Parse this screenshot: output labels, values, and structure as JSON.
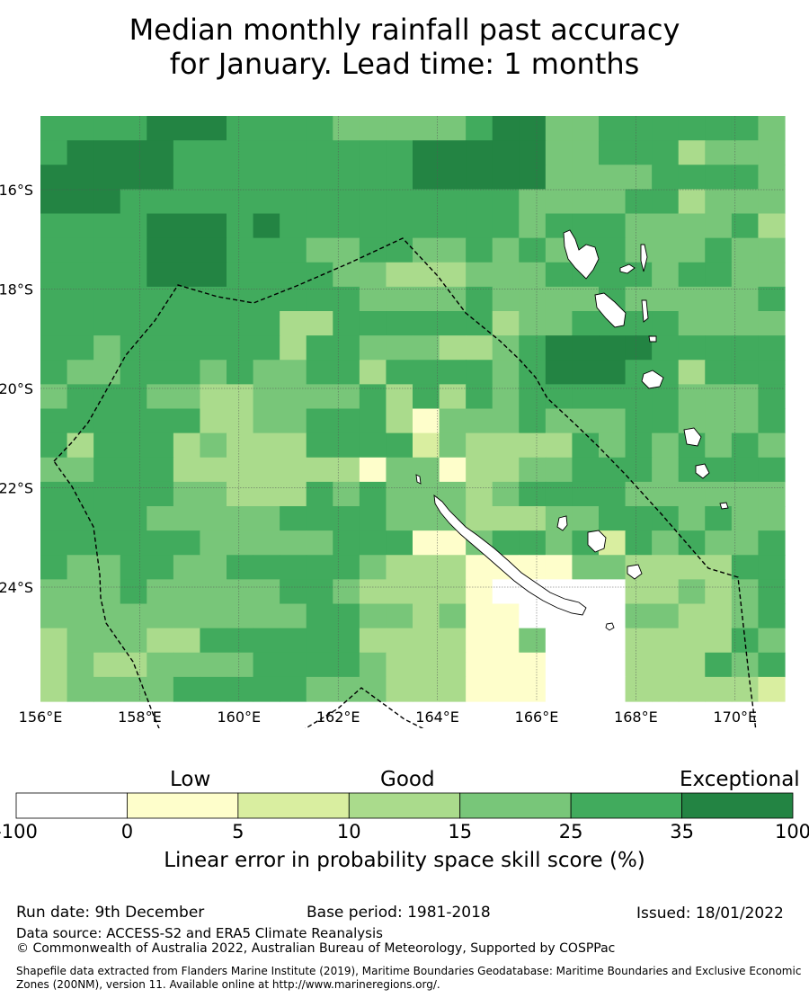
{
  "title_line1": "Median monthly rainfall past accuracy",
  "title_line2": "for January. Lead time: 1 months",
  "map": {
    "lon_labels": [
      "156°E",
      "158°E",
      "160°E",
      "162°E",
      "164°E",
      "166°E",
      "168°E",
      "170°E"
    ],
    "lat_labels": [
      "16°S",
      "18°S",
      "20°S",
      "22°S",
      "24°S"
    ],
    "grid": [
      "5555666555544444566445555554",
      "5666655555555566666445553444",
      "6666655555555566666444455554",
      "6665555555555555554444553444",
      "5555666565555555554555444453",
      "5555666555445544545455444544",
      "5555666555544333444555545544",
      "5555555555554444544445444445",
      "5555555553355555534455554444",
      "5545555553554443345666655555",
      "5445554544553555545666553555",
      "4555443344445353545555554445",
      "5555553344555314445444554445",
      "5355534333555524333354545454",
      "4455533333331441334455545555",
      "5555544333545444345555444444",
      "5555444445555444333445554544",
      "5555554444455511455452545445",
      "5445544555554333111144333355",
      "4445444445543333100000334345",
      "4444444444554434110000443345",
      "3444335555553333114000333354",
      "3433444455554333111000333545",
      "3444455555444333111000333332"
    ]
  },
  "colorbar": {
    "categories": [
      "Low",
      "Good",
      "Exceptional"
    ],
    "ticks": [
      "-100",
      "0",
      "5",
      "10",
      "15",
      "25",
      "35",
      "100"
    ],
    "colors": [
      "#ffffff",
      "#fefecb",
      "#d9eea0",
      "#aadb8c",
      "#78c679",
      "#41ab5d",
      "#238443"
    ],
    "title": "Linear error in probability space skill score (%)"
  },
  "footer": {
    "run_date": "Run date: 9th December",
    "base_period": "Base period: 1981-2018",
    "issued": "Issued: 18/01/2022",
    "data_source": "Data source: ACCESS-S2 and ERA5 Climate Reanalysis",
    "copyright": "© Commonwealth of Australia 2022, Australian Bureau of Meteorology, Supported by COSPPac",
    "shapefile_line1": "Shapefile data extracted from Flanders Marine Institute (2019), Maritime Boundaries Geodatabase: Maritime Boundaries and Exclusive Economic",
    "shapefile_line2": "Zones (200NM), version 11. Available online at http://www.marineregions.org/."
  }
}
